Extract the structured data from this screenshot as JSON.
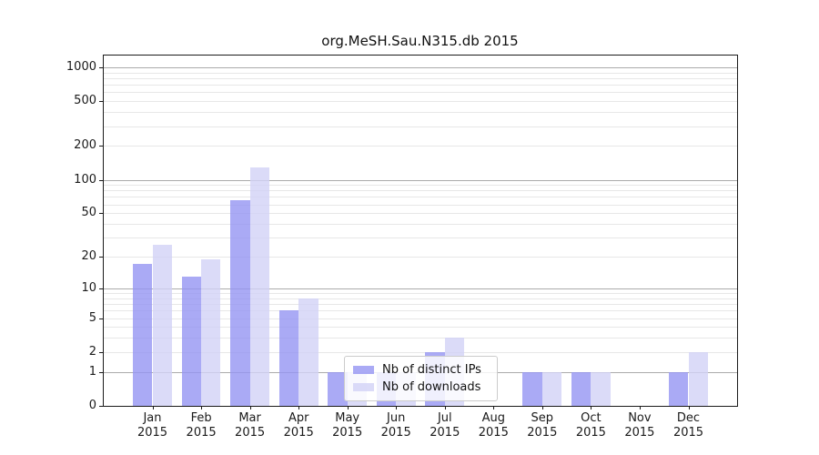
{
  "title": "org.MeSH.Sau.N315.db 2015",
  "chart_data": {
    "type": "bar",
    "title": "org.MeSH.Sau.N315.db 2015",
    "categories": [
      "Jan",
      "Feb",
      "Mar",
      "Apr",
      "May",
      "Jun",
      "Jul",
      "Aug",
      "Sep",
      "Oct",
      "Nov",
      "Dec"
    ],
    "x_year_label": "2015",
    "series": [
      {
        "name": "Nb of distinct IPs",
        "color": "#9595f2",
        "values": [
          17,
          13,
          66,
          6,
          1,
          1,
          2,
          0,
          1,
          1,
          0,
          1
        ]
      },
      {
        "name": "Nb of downloads",
        "color": "#d2d2f6",
        "values": [
          26,
          19,
          128,
          8,
          1,
          1,
          3,
          0,
          1,
          1,
          0,
          2
        ]
      }
    ],
    "xlabel": "",
    "ylabel": "",
    "y_scale": "log10(1+x)",
    "ylim": [
      0,
      1272
    ],
    "y_ticks": [
      0,
      1,
      2,
      5,
      10,
      20,
      50,
      100,
      200,
      500,
      1000
    ],
    "y_major_gridlines": [
      1,
      10,
      100,
      1000
    ],
    "y_minor_gridlines": [
      2,
      3,
      4,
      5,
      6,
      7,
      8,
      9,
      20,
      30,
      40,
      50,
      60,
      70,
      80,
      90,
      200,
      300,
      400,
      500,
      600,
      700,
      800,
      900
    ],
    "grid": "on",
    "legend_position": "lower-center-inside",
    "colors": {
      "distinct_ips_bar": "#aaaaf4",
      "downloads_bar": "#dbdbf8",
      "major_grid": "#ababab",
      "minor_grid": "#e7e7e7"
    }
  }
}
